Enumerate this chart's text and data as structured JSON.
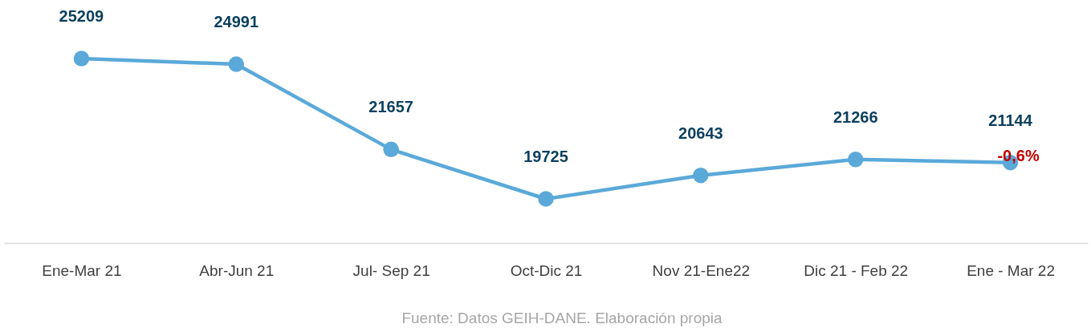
{
  "chart_data": {
    "type": "line",
    "categories": [
      "Ene-Mar 21",
      "Abr-Jun 21",
      "Jul- Sep 21",
      "Oct-Dic 21",
      "Nov 21-Ene22",
      "Dic 21 - Feb 22",
      "Ene - Mar 22"
    ],
    "series": [
      {
        "color": "#5aa9d9",
        "values": [
          25209,
          24991,
          21657,
          19725,
          20643,
          21266,
          21144
        ]
      }
    ],
    "ylim": [
      18000,
      27500
    ],
    "tick_labels": "x",
    "grid": false,
    "marker": "circle",
    "line_style": "solid",
    "data_labels": true,
    "annotations": [
      {
        "text": "-0,6%",
        "x": "Ene - Mar 22",
        "y": 21144
      },
      "Fuente: Datos GEIH-DANE. Elaboración propia"
    ]
  }
}
